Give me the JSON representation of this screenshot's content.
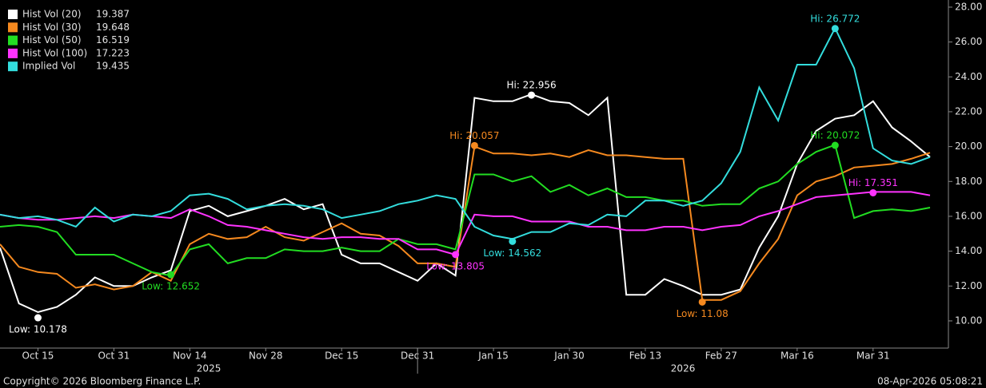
{
  "chart_data": {
    "type": "line",
    "categories": [
      null,
      null,
      "Oct 15",
      null,
      null,
      null,
      "Oct 31",
      null,
      null,
      null,
      "Nov 14",
      null,
      null,
      null,
      "Nov 28",
      null,
      null,
      null,
      "Dec 15",
      null,
      null,
      null,
      "Dec 31",
      null,
      null,
      null,
      "Jan 15",
      null,
      null,
      null,
      "Jan 30",
      null,
      null,
      null,
      "Feb 13",
      null,
      null,
      null,
      "Feb 27",
      null,
      null,
      null,
      "Mar 16",
      null,
      null,
      null,
      "Mar 31",
      null,
      null,
      null
    ],
    "year_labels": [
      "2025",
      "2026"
    ],
    "ylim": [
      8.44,
      28.41
    ],
    "yticks": [
      {
        "value": 10,
        "label": "10.00"
      },
      {
        "value": 12,
        "label": "12.00"
      },
      {
        "value": 14,
        "label": "14.00"
      },
      {
        "value": 16,
        "label": "16.00"
      },
      {
        "value": 18,
        "label": "18.00"
      },
      {
        "value": 20,
        "label": "20.00"
      },
      {
        "value": 22,
        "label": "22.00"
      },
      {
        "value": 24,
        "label": "24.00"
      },
      {
        "value": 26,
        "label": "26.00"
      },
      {
        "value": 28,
        "label": "28.00"
      }
    ],
    "series": [
      {
        "name": "Hist Vol (20)",
        "last": 19.387,
        "color": "#ffffff",
        "values": [
          14.2,
          11.0,
          10.5,
          10.8,
          11.5,
          12.5,
          12.0,
          12.0,
          12.5,
          12.9,
          16.3,
          16.6,
          16.0,
          16.3,
          16.6,
          17.0,
          16.4,
          16.7,
          13.8,
          13.3,
          13.3,
          12.8,
          12.3,
          13.3,
          12.6,
          22.8,
          22.6,
          22.6,
          23.0,
          22.6,
          22.5,
          21.8,
          22.8,
          11.5,
          11.5,
          12.4,
          12.0,
          11.5,
          11.5,
          11.8,
          14.2,
          16.0,
          19.0,
          20.9,
          21.6,
          21.8,
          22.6,
          21.1,
          20.3,
          19.4
        ],
        "annotations": [
          {
            "text": "Low: 10.178",
            "value": 10.178,
            "kind": "low"
          },
          {
            "text": "Hi: 22.956",
            "value": 22.956,
            "kind": "hi"
          }
        ]
      },
      {
        "name": "Hist Vol (30)",
        "last": 19.648,
        "color": "#f5891f",
        "values": [
          14.4,
          13.1,
          12.8,
          12.7,
          11.9,
          12.1,
          11.8,
          12.0,
          12.8,
          12.3,
          14.4,
          15.0,
          14.7,
          14.8,
          15.4,
          14.8,
          14.6,
          15.1,
          15.6,
          15.0,
          14.9,
          14.3,
          13.3,
          13.3,
          13.1,
          20.0,
          19.6,
          19.6,
          19.5,
          19.6,
          19.4,
          19.8,
          19.5,
          19.5,
          19.4,
          19.3,
          19.3,
          11.2,
          11.2,
          11.7,
          13.3,
          14.7,
          17.2,
          18.0,
          18.3,
          18.8,
          18.9,
          19.0,
          19.3,
          19.65
        ],
        "annotations": [
          {
            "text": "Hi: 20.057",
            "value": 20.057,
            "kind": "hi"
          },
          {
            "text": "Low: 11.08",
            "value": 11.08,
            "kind": "low"
          }
        ]
      },
      {
        "name": "Hist Vol (50)",
        "last": 16.519,
        "color": "#22dd22",
        "values": [
          15.4,
          15.5,
          15.4,
          15.1,
          13.8,
          13.8,
          13.8,
          13.3,
          12.8,
          12.6,
          14.1,
          14.4,
          13.3,
          13.6,
          13.6,
          14.1,
          14.0,
          14.0,
          14.2,
          14.0,
          14.0,
          14.7,
          14.4,
          14.4,
          14.1,
          18.4,
          18.4,
          18.0,
          18.3,
          17.4,
          17.8,
          17.2,
          17.6,
          17.1,
          17.1,
          16.9,
          16.9,
          16.6,
          16.7,
          16.7,
          17.6,
          18.0,
          19.0,
          19.7,
          20.1,
          15.9,
          16.3,
          16.4,
          16.3,
          16.5
        ],
        "annotations": [
          {
            "text": "Low: 12.652",
            "value": 12.652,
            "kind": "low"
          },
          {
            "text": "Hi: 20.072",
            "value": 20.072,
            "kind": "hi"
          }
        ]
      },
      {
        "name": "Hist Vol (100)",
        "last": 17.223,
        "color": "#ff33ff",
        "values": [
          16.1,
          15.9,
          15.8,
          15.8,
          15.9,
          16.0,
          15.9,
          16.1,
          16.0,
          15.9,
          16.4,
          16.0,
          15.5,
          15.4,
          15.2,
          15.0,
          14.8,
          14.7,
          14.8,
          14.8,
          14.7,
          14.7,
          14.1,
          14.1,
          13.8,
          16.1,
          16.0,
          16.0,
          15.7,
          15.7,
          15.7,
          15.4,
          15.4,
          15.2,
          15.2,
          15.4,
          15.4,
          15.2,
          15.4,
          15.5,
          16.0,
          16.3,
          16.7,
          17.1,
          17.2,
          17.3,
          17.4,
          17.4,
          17.4,
          17.2
        ],
        "annotations": [
          {
            "text": "Low: 13.805",
            "value": 13.805,
            "kind": "low"
          },
          {
            "text": "Hi: 17.351",
            "value": 17.351,
            "kind": "hi"
          }
        ]
      },
      {
        "name": "Implied Vol",
        "last": 19.435,
        "color": "#33dddd",
        "values": [
          16.1,
          15.9,
          16.0,
          15.8,
          15.4,
          16.5,
          15.7,
          16.1,
          16.0,
          16.3,
          17.2,
          17.3,
          17.0,
          16.4,
          16.6,
          16.7,
          16.6,
          16.4,
          15.9,
          16.1,
          16.3,
          16.7,
          16.9,
          17.2,
          17.0,
          15.4,
          14.9,
          14.7,
          15.1,
          15.1,
          15.6,
          15.5,
          16.1,
          16.0,
          16.9,
          16.9,
          16.6,
          16.9,
          17.9,
          19.7,
          23.4,
          21.5,
          24.7,
          24.7,
          26.8,
          24.5,
          19.9,
          19.2,
          19.0,
          19.4
        ],
        "annotations": [
          {
            "text": "Low: 14.562",
            "value": 14.562,
            "kind": "low"
          },
          {
            "text": "Hi: 26.772",
            "value": 26.772,
            "kind": "hi"
          }
        ]
      }
    ],
    "footer_left": "Copyright© 2026 Bloomberg Finance L.P.",
    "footer_right": "08-Apr-2026 05:08:21"
  }
}
